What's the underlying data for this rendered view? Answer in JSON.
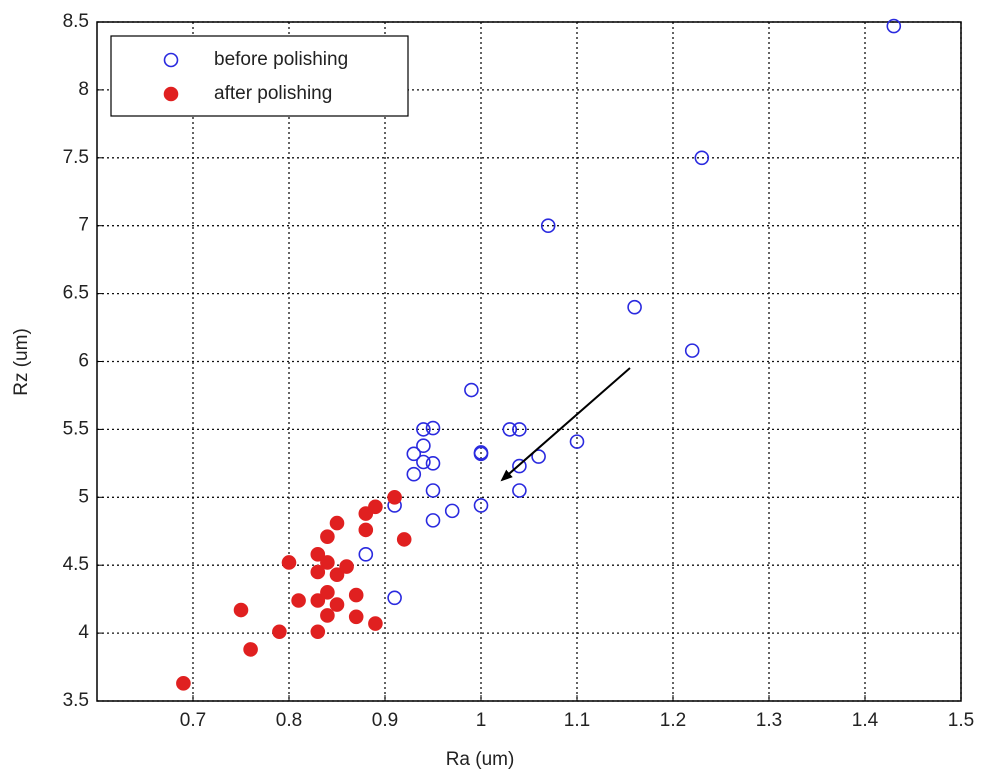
{
  "chart_data": {
    "type": "scatter",
    "x_label": "Ra (um)",
    "y_label": "Rz (um)",
    "xlim": [
      0.6,
      1.5
    ],
    "xticks": [
      0.7,
      0.8,
      0.9,
      1,
      1.1,
      1.2,
      1.3,
      1.4,
      1.5
    ],
    "ylim": [
      3.5,
      8.5
    ],
    "yticks": [
      3.5,
      4,
      4.5,
      5,
      5.5,
      6,
      6.5,
      7,
      7.5,
      8,
      8.5
    ],
    "grid": true,
    "legend": "upper left",
    "series": [
      {
        "name": "before polishing",
        "color": "#2a2adf",
        "filled": false,
        "x": [
          1.43,
          1.23,
          1.07,
          1.16,
          1.22,
          0.99,
          0.94,
          0.95,
          1.03,
          1.04,
          1.1,
          0.94,
          0.93,
          1.0,
          1.0,
          0.94,
          0.95,
          1.06,
          1.04,
          0.93,
          0.95,
          1.04,
          0.91,
          1.0,
          0.97,
          0.95,
          0.88,
          0.91
        ],
        "values": [
          8.47,
          7.5,
          7.0,
          6.4,
          6.08,
          5.79,
          5.5,
          5.51,
          5.5,
          5.5,
          5.41,
          5.38,
          5.32,
          5.33,
          5.32,
          5.26,
          5.25,
          5.3,
          5.23,
          5.17,
          5.05,
          5.05,
          4.94,
          4.94,
          4.9,
          4.83,
          4.58,
          4.26
        ]
      },
      {
        "name": "after polishing",
        "color": "#e02020",
        "filled": true,
        "x": [
          0.91,
          0.89,
          0.88,
          0.85,
          0.88,
          0.84,
          0.92,
          0.83,
          0.8,
          0.84,
          0.86,
          0.83,
          0.85,
          0.84,
          0.87,
          0.81,
          0.83,
          0.85,
          0.84,
          0.87,
          0.75,
          0.89,
          0.79,
          0.83,
          0.76,
          0.69
        ],
        "values": [
          5.0,
          4.93,
          4.88,
          4.81,
          4.76,
          4.71,
          4.69,
          4.58,
          4.52,
          4.52,
          4.49,
          4.45,
          4.43,
          4.3,
          4.28,
          4.24,
          4.24,
          4.21,
          4.13,
          4.12,
          4.17,
          4.07,
          4.01,
          4.01,
          3.88,
          3.63
        ]
      }
    ]
  }
}
